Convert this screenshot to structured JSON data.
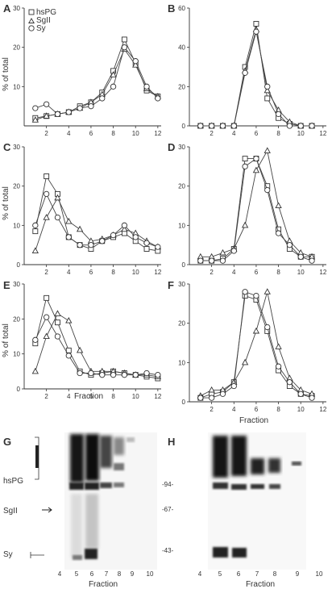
{
  "chart_data": [
    {
      "panel": "A",
      "type": "line",
      "xticks": [
        2,
        4,
        6,
        8,
        10,
        12
      ],
      "ylim": [
        0,
        30
      ],
      "yticks": [
        10,
        20,
        30
      ],
      "ylabel": "% of total",
      "xlabel": "",
      "legend": [
        "hsPG",
        "SgII",
        "Sy"
      ],
      "legend_position": "top-left",
      "series": [
        {
          "name": "hsPG",
          "marker": "square",
          "x": [
            1,
            2,
            3,
            4,
            5,
            6,
            7,
            8,
            9,
            10,
            11,
            12
          ],
          "y": [
            2,
            2.5,
            3,
            3.5,
            5,
            6,
            8.5,
            14,
            22,
            16,
            9,
            7.5
          ]
        },
        {
          "name": "SgII",
          "marker": "triangle",
          "x": [
            1,
            2,
            3,
            4,
            5,
            6,
            7,
            8,
            9,
            10,
            11,
            12
          ],
          "y": [
            1.5,
            2.5,
            3,
            3.5,
            4.5,
            6,
            8,
            13,
            19.5,
            15.5,
            9.5,
            7.5
          ]
        },
        {
          "name": "Sy",
          "marker": "circle",
          "x": [
            1,
            2,
            3,
            4,
            5,
            6,
            7,
            8,
            9,
            10,
            11,
            12
          ],
          "y": [
            4.5,
            5.5,
            3,
            3.5,
            4.5,
            5,
            7,
            10,
            20,
            16.5,
            10,
            7
          ]
        }
      ]
    },
    {
      "panel": "B",
      "type": "line",
      "xticks": [
        2,
        4,
        6,
        8,
        10,
        12
      ],
      "ylim": [
        0,
        60
      ],
      "yticks": [
        0,
        20,
        40,
        60
      ],
      "ylabel": "",
      "xlabel": "",
      "series": [
        {
          "name": "hsPG",
          "marker": "square",
          "x": [
            1,
            2,
            3,
            4,
            5,
            6,
            7,
            8,
            9,
            10,
            11
          ],
          "y": [
            0,
            0,
            0,
            0,
            30,
            52,
            14,
            4,
            1,
            0,
            0
          ]
        },
        {
          "name": "SgII",
          "marker": "triangle",
          "x": [
            1,
            2,
            3,
            4,
            5,
            6,
            7,
            8,
            9,
            10,
            11
          ],
          "y": [
            0,
            0,
            0,
            0,
            28,
            49,
            18,
            8,
            2,
            0,
            0
          ]
        },
        {
          "name": "Sy",
          "marker": "circle",
          "x": [
            1,
            2,
            3,
            4,
            5,
            6,
            7,
            8,
            9,
            10,
            11
          ],
          "y": [
            0,
            0,
            0,
            0,
            27,
            48,
            20,
            6,
            0,
            0,
            0
          ]
        }
      ]
    },
    {
      "panel": "C",
      "type": "line",
      "xticks": [
        2,
        4,
        6,
        8,
        10,
        12
      ],
      "ylim": [
        0,
        30
      ],
      "yticks": [
        0,
        10,
        20,
        30
      ],
      "ylabel": "% of total",
      "xlabel": "",
      "series": [
        {
          "name": "hsPG",
          "marker": "square",
          "x": [
            1,
            2,
            3,
            4,
            5,
            6,
            7,
            8,
            9,
            10,
            11,
            12
          ],
          "y": [
            8.5,
            22.5,
            18,
            7,
            5,
            4,
            6,
            7,
            8,
            6,
            4,
            3.5
          ]
        },
        {
          "name": "SgII",
          "marker": "triangle",
          "x": [
            1,
            2,
            3,
            4,
            5,
            6,
            7,
            8,
            9,
            10,
            11,
            12
          ],
          "y": [
            3.5,
            12,
            17,
            11,
            9,
            6,
            6.5,
            7.5,
            9,
            8,
            6,
            4.5
          ]
        },
        {
          "name": "Sy",
          "marker": "circle",
          "x": [
            1,
            2,
            3,
            4,
            5,
            6,
            7,
            8,
            9,
            10,
            11,
            12
          ],
          "y": [
            10,
            18,
            12,
            7,
            5,
            5,
            6,
            7.5,
            10,
            7,
            5.5,
            4.5
          ]
        }
      ]
    },
    {
      "panel": "D",
      "type": "line",
      "xticks": [
        2,
        4,
        6,
        8,
        10,
        12
      ],
      "ylim": [
        0,
        30
      ],
      "yticks": [
        0,
        10,
        20,
        30
      ],
      "ylabel": "",
      "xlabel": "",
      "series": [
        {
          "name": "hsPG",
          "marker": "square",
          "x": [
            1,
            2,
            3,
            4,
            5,
            6,
            7,
            8,
            9,
            10,
            11
          ],
          "y": [
            1,
            1,
            1.5,
            4,
            27,
            27,
            20,
            9,
            4,
            2,
            2
          ]
        },
        {
          "name": "SgII",
          "marker": "triangle",
          "x": [
            1,
            2,
            3,
            4,
            5,
            6,
            7,
            8,
            9,
            10,
            11
          ],
          "y": [
            2,
            2,
            3,
            4,
            10,
            24,
            29,
            15,
            6,
            3,
            2
          ]
        },
        {
          "name": "Sy",
          "marker": "circle",
          "x": [
            1,
            2,
            3,
            4,
            5,
            6,
            7,
            8,
            9,
            10,
            11
          ],
          "y": [
            1,
            1,
            1,
            3.5,
            25,
            27,
            19,
            8,
            5,
            2,
            1
          ]
        }
      ]
    },
    {
      "panel": "E",
      "type": "line",
      "xticks": [
        2,
        4,
        6,
        8,
        10,
        12
      ],
      "ylim": [
        0,
        30
      ],
      "yticks": [
        0,
        10,
        20,
        30
      ],
      "ylabel": "% of total",
      "xlabel": "Fraction",
      "series": [
        {
          "name": "hsPG",
          "marker": "square",
          "x": [
            1,
            2,
            3,
            4,
            5,
            6,
            7,
            8,
            9,
            10,
            11,
            12
          ],
          "y": [
            13,
            26,
            19,
            11,
            5,
            4,
            4.5,
            5,
            4.5,
            4,
            3.5,
            3
          ]
        },
        {
          "name": "SgII",
          "marker": "triangle",
          "x": [
            1,
            2,
            3,
            4,
            5,
            6,
            7,
            8,
            9,
            10,
            11,
            12
          ],
          "y": [
            5,
            15,
            21.5,
            19.5,
            11,
            5,
            5,
            5,
            4.5,
            4,
            4,
            3.5
          ]
        },
        {
          "name": "Sy",
          "marker": "circle",
          "x": [
            1,
            2,
            3,
            4,
            5,
            6,
            7,
            8,
            9,
            10,
            11,
            12
          ],
          "y": [
            14,
            20.5,
            15,
            9.5,
            4.5,
            4.5,
            4,
            4,
            4,
            4,
            4.5,
            4
          ]
        }
      ]
    },
    {
      "panel": "F",
      "type": "line",
      "xticks": [
        2,
        4,
        6,
        8,
        10,
        12
      ],
      "ylim": [
        0,
        30
      ],
      "yticks": [
        0,
        10,
        20,
        30
      ],
      "ylabel": "",
      "xlabel": "Fraction",
      "series": [
        {
          "name": "hsPG",
          "marker": "square",
          "x": [
            1,
            2,
            3,
            4,
            5,
            6,
            7,
            8,
            9,
            10,
            11
          ],
          "y": [
            1,
            2,
            2.5,
            5,
            27,
            26,
            18,
            8,
            4,
            2,
            1.5
          ]
        },
        {
          "name": "SgII",
          "marker": "triangle",
          "x": [
            1,
            2,
            3,
            4,
            5,
            6,
            7,
            8,
            9,
            10,
            11
          ],
          "y": [
            1.5,
            3,
            3,
            5,
            10,
            18,
            28,
            14,
            6,
            3,
            2
          ]
        },
        {
          "name": "Sy",
          "marker": "circle",
          "x": [
            1,
            2,
            3,
            4,
            5,
            6,
            7,
            8,
            9,
            10,
            11
          ],
          "y": [
            1,
            1,
            2,
            4,
            28,
            27,
            19,
            9,
            5,
            2,
            1
          ]
        }
      ]
    }
  ],
  "gels": [
    {
      "panel": "G",
      "labels": [
        "hsPG",
        "SgII",
        "Sy"
      ],
      "lane_labels": [
        "4",
        "5",
        "6",
        "7",
        "8",
        "9",
        "10"
      ],
      "xlabel": "Fraction"
    },
    {
      "panel": "H",
      "markers": [
        "-94-",
        "-67-",
        "-43-"
      ],
      "lane_labels": [
        "4",
        "5",
        "6",
        "7",
        "8",
        "9",
        "10"
      ],
      "xlabel": "Fraction"
    }
  ]
}
